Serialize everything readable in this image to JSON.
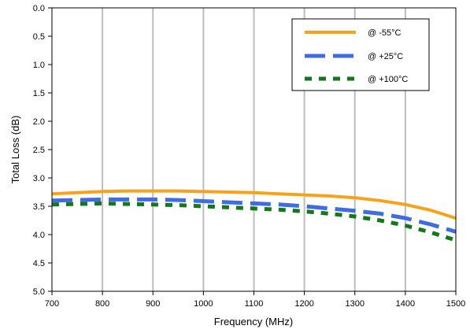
{
  "chart_data": {
    "type": "line",
    "title": "",
    "xlabel": "Frequency (MHz)",
    "ylabel": "Total Loss (dB)",
    "xlim": [
      700,
      1500
    ],
    "ylim": [
      0.0,
      5.0
    ],
    "y_inverted": true,
    "x_ticks": [
      700,
      800,
      900,
      1000,
      1100,
      1200,
      1300,
      1400,
      1500
    ],
    "y_ticks": [
      "0.0",
      "0.5",
      "1.0",
      "1.5",
      "2.0",
      "2.5",
      "3.0",
      "3.5",
      "4.0",
      "4.5",
      "5.0"
    ],
    "grid": "vertical",
    "legend_position": "top-right",
    "series": [
      {
        "name": "@ -55°C",
        "color": "#f7a21b",
        "style": "solid",
        "x": [
          700,
          750,
          800,
          850,
          900,
          950,
          1000,
          1050,
          1100,
          1150,
          1200,
          1250,
          1300,
          1350,
          1400,
          1450,
          1500
        ],
        "values": [
          3.28,
          3.26,
          3.24,
          3.23,
          3.23,
          3.23,
          3.24,
          3.25,
          3.26,
          3.28,
          3.3,
          3.32,
          3.35,
          3.4,
          3.47,
          3.57,
          3.71
        ]
      },
      {
        "name": "@ +25°C",
        "color": "#3d6de0",
        "style": "dashed",
        "x": [
          700,
          750,
          800,
          850,
          900,
          950,
          1000,
          1050,
          1100,
          1150,
          1200,
          1250,
          1300,
          1350,
          1400,
          1450,
          1500
        ],
        "values": [
          3.4,
          3.39,
          3.38,
          3.38,
          3.38,
          3.39,
          3.41,
          3.43,
          3.45,
          3.47,
          3.5,
          3.54,
          3.58,
          3.63,
          3.71,
          3.82,
          3.95
        ]
      },
      {
        "name": "@ +100°C",
        "color": "#15761c",
        "style": "dotted",
        "x": [
          700,
          750,
          800,
          850,
          900,
          950,
          1000,
          1050,
          1100,
          1150,
          1200,
          1250,
          1300,
          1350,
          1400,
          1450,
          1500
        ],
        "values": [
          3.47,
          3.46,
          3.45,
          3.46,
          3.47,
          3.48,
          3.5,
          3.52,
          3.54,
          3.56,
          3.59,
          3.63,
          3.68,
          3.75,
          3.84,
          3.96,
          4.1
        ]
      }
    ]
  }
}
